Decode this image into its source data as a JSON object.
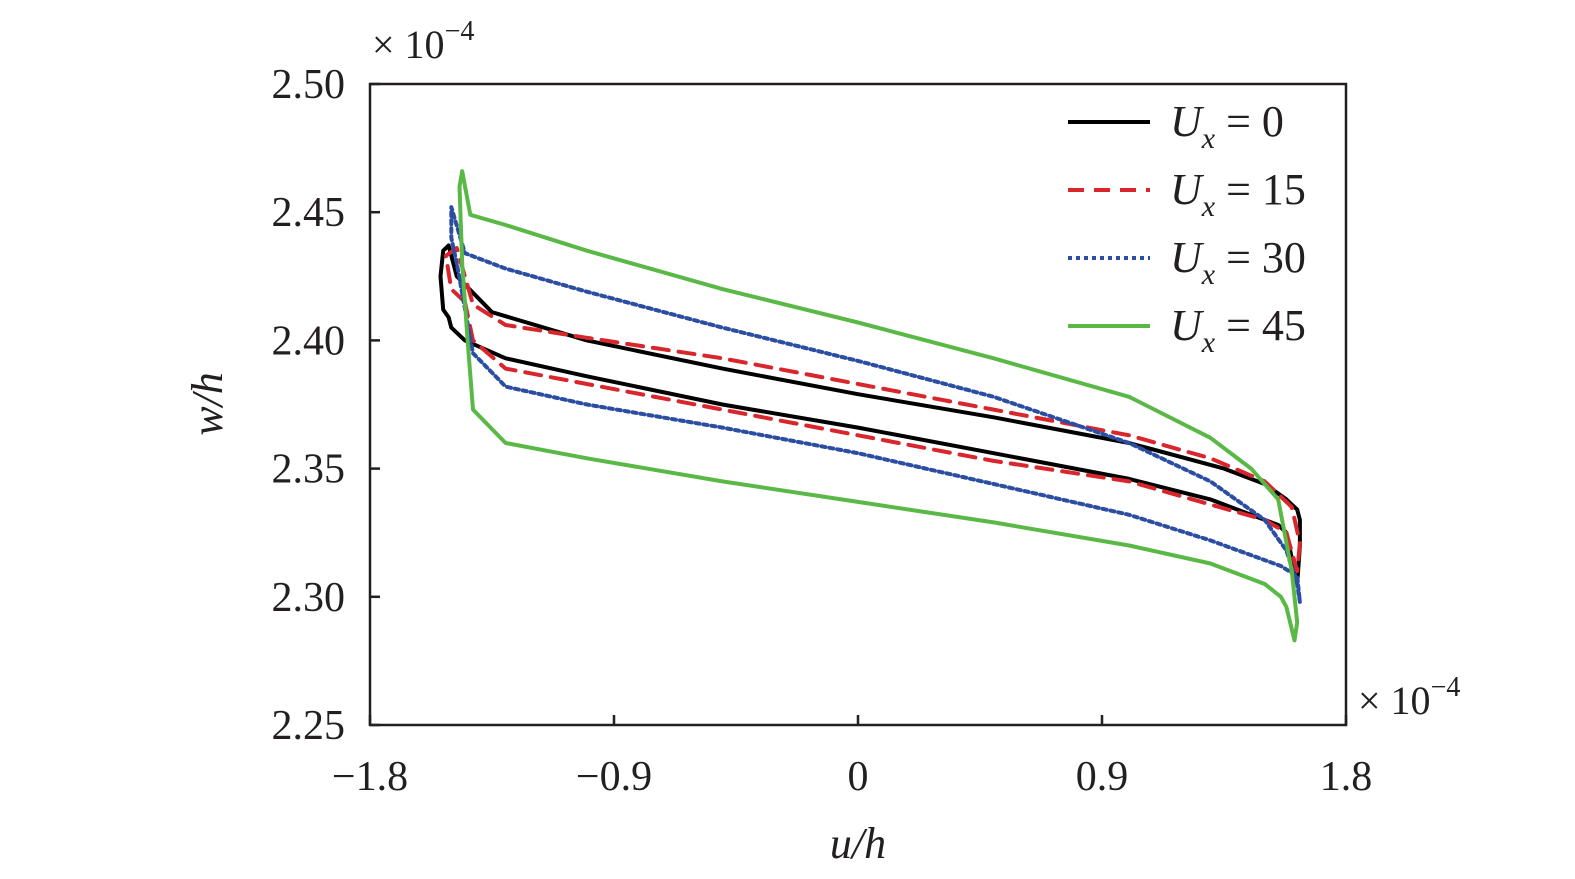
{
  "chart_data": {
    "type": "line",
    "xlabel": "u/h",
    "ylabel": "w/h",
    "x_multiplier": "× 10",
    "x_exponent": "−4",
    "y_multiplier": "× 10",
    "y_exponent": "−4",
    "xlim": [
      -1.8,
      1.8
    ],
    "ylim": [
      2.25,
      2.5
    ],
    "xticks": [
      -1.8,
      -0.9,
      0,
      0.9,
      1.8
    ],
    "xtick_labels": [
      "−1.8",
      "−0.9",
      "0",
      "0.9",
      "1.8"
    ],
    "yticks": [
      2.25,
      2.3,
      2.35,
      2.4,
      2.45,
      2.5
    ],
    "ytick_labels": [
      "2.25",
      "2.30",
      "2.35",
      "2.40",
      "2.45",
      "2.50"
    ],
    "grid": false,
    "legend_position": "top-right",
    "series": [
      {
        "name": "U_x = 0",
        "legend_var": "U",
        "legend_sub": "x",
        "legend_value": " = 0",
        "color": "#000000",
        "style": "solid",
        "x": [
          -1.51,
          -1.53,
          -1.54,
          -1.53,
          -1.51,
          -1.48,
          -1.35,
          -1.0,
          -0.5,
          0.0,
          0.5,
          1.0,
          1.35,
          1.5,
          1.58,
          1.62,
          1.63,
          1.63,
          1.62,
          1.6,
          1.58,
          1.55,
          1.3,
          1.0,
          0.5,
          0.0,
          -0.5,
          -1.0,
          -1.3,
          -1.45,
          -1.5,
          -1.51
        ],
        "y": [
          2.409,
          2.412,
          2.425,
          2.435,
          2.437,
          2.425,
          2.411,
          2.4,
          2.389,
          2.379,
          2.37,
          2.36,
          2.35,
          2.344,
          2.338,
          2.334,
          2.33,
          2.32,
          2.305,
          2.315,
          2.325,
          2.328,
          2.338,
          2.346,
          2.356,
          2.366,
          2.375,
          2.386,
          2.393,
          2.4,
          2.405,
          2.409
        ]
      },
      {
        "name": "U_x = 15",
        "legend_var": "U",
        "legend_sub": "x",
        "legend_value": " = 15",
        "color": "#d9262d",
        "style": "dashed",
        "x": [
          -1.45,
          -1.5,
          -1.52,
          -1.48,
          -1.42,
          -1.3,
          -1.0,
          -0.5,
          0.0,
          0.5,
          1.0,
          1.3,
          1.5,
          1.6,
          1.63,
          1.62,
          1.58,
          1.5,
          1.3,
          1.0,
          0.5,
          0.0,
          -0.5,
          -1.0,
          -1.3,
          -1.42,
          -1.45
        ],
        "y": [
          2.415,
          2.42,
          2.433,
          2.436,
          2.414,
          2.406,
          2.401,
          2.393,
          2.383,
          2.373,
          2.363,
          2.354,
          2.345,
          2.335,
          2.321,
          2.31,
          2.325,
          2.33,
          2.336,
          2.345,
          2.353,
          2.363,
          2.373,
          2.383,
          2.389,
          2.4,
          2.415
        ]
      },
      {
        "name": "U_x = 30",
        "legend_var": "U",
        "legend_sub": "x",
        "legend_value": " = 30",
        "color": "#2b4ea2",
        "style": "dotted",
        "x": [
          -1.48,
          -1.5,
          -1.5,
          -1.45,
          -1.3,
          -1.0,
          -0.5,
          0.0,
          0.5,
          1.0,
          1.3,
          1.5,
          1.58,
          1.62,
          1.63,
          1.62,
          1.56,
          1.3,
          1.0,
          0.5,
          0.0,
          -0.5,
          -1.0,
          -1.3,
          -1.42,
          -1.48
        ],
        "y": [
          2.43,
          2.44,
          2.452,
          2.434,
          2.428,
          2.419,
          2.405,
          2.392,
          2.378,
          2.36,
          2.345,
          2.33,
          2.318,
          2.305,
          2.298,
          2.308,
          2.312,
          2.322,
          2.332,
          2.344,
          2.356,
          2.366,
          2.375,
          2.382,
          2.395,
          2.43
        ]
      },
      {
        "name": "U_x = 45",
        "legend_var": "U",
        "legend_sub": "x",
        "legend_value": " = 45",
        "color": "#5ab946",
        "style": "solid",
        "x": [
          -1.44,
          -1.46,
          -1.47,
          -1.46,
          -1.43,
          -1.3,
          -1.0,
          -0.5,
          0.0,
          0.5,
          1.0,
          1.3,
          1.45,
          1.55,
          1.6,
          1.62,
          1.61,
          1.58,
          1.56,
          1.5,
          1.3,
          1.0,
          0.5,
          0.0,
          -0.5,
          -1.0,
          -1.3,
          -1.42,
          -1.44
        ],
        "y": [
          2.4,
          2.43,
          2.46,
          2.466,
          2.449,
          2.445,
          2.435,
          2.42,
          2.407,
          2.393,
          2.378,
          2.362,
          2.35,
          2.338,
          2.31,
          2.29,
          2.283,
          2.296,
          2.3,
          2.305,
          2.313,
          2.32,
          2.329,
          2.337,
          2.345,
          2.354,
          2.36,
          2.373,
          2.4
        ]
      }
    ]
  }
}
